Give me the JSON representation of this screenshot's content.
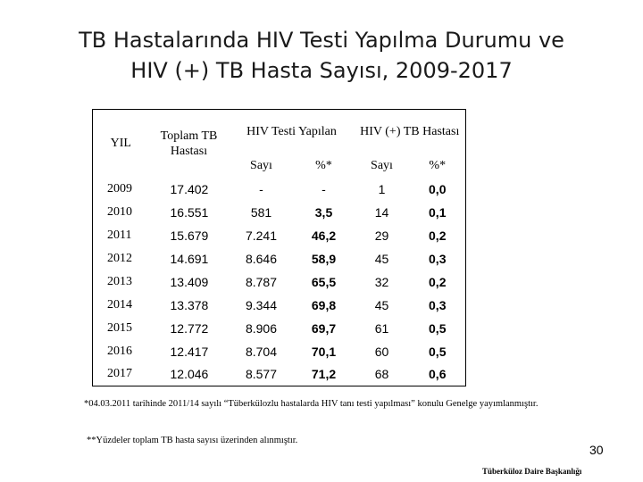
{
  "title": {
    "line1": "TB Hastalarında HIV Testi Yapılma Durumu ve",
    "line2": "HIV (+) TB Hasta Sayısı, 2009-2017"
  },
  "table": {
    "headers": {
      "year": "YIL",
      "total_line1": "Toplam TB",
      "total_line2": "Hastası",
      "hiv_test": "HIV Testi Yapılan",
      "hiv_positive": "HIV (+) TB Hastası",
      "count": "Sayı",
      "percent": "%*"
    },
    "rows": [
      {
        "year": "2009",
        "total": "17.402",
        "tested": "-",
        "tested_pct": "-",
        "positive": "1",
        "positive_pct": "0,0"
      },
      {
        "year": "2010",
        "total": "16.551",
        "tested": "581",
        "tested_pct": "3,5",
        "positive": "14",
        "positive_pct": "0,1"
      },
      {
        "year": "2011",
        "total": "15.679",
        "tested": "7.241",
        "tested_pct": "46,2",
        "positive": "29",
        "positive_pct": "0,2"
      },
      {
        "year": "2012",
        "total": "14.691",
        "tested": "8.646",
        "tested_pct": "58,9",
        "positive": "45",
        "positive_pct": "0,3"
      },
      {
        "year": "2013",
        "total": "13.409",
        "tested": "8.787",
        "tested_pct": "65,5",
        "positive": "32",
        "positive_pct": "0,2"
      },
      {
        "year": "2014",
        "total": "13.378",
        "tested": "9.344",
        "tested_pct": "69,8",
        "positive": "45",
        "positive_pct": "0,3"
      },
      {
        "year": "2015",
        "total": "12.772",
        "tested": "8.906",
        "tested_pct": "69,7",
        "positive": "61",
        "positive_pct": "0,5"
      },
      {
        "year": "2016",
        "total": "12.417",
        "tested": "8.704",
        "tested_pct": "70,1",
        "positive": "60",
        "positive_pct": "0,5"
      },
      {
        "year": "2017",
        "total": "12.046",
        "tested": "8.577",
        "tested_pct": "71,2",
        "positive": "68",
        "positive_pct": "0,6"
      }
    ]
  },
  "notes": {
    "note1": "*04.03.2011 tarihinde 2011/14 sayılı “Tüberkülozlu hastalarda HIV tanı testi yapılması” konulu Genelge yayımlanmıştır.",
    "note2": "**Yüzdeler toplam TB hasta sayısı üzerinden alınmıştır."
  },
  "page_number": "30",
  "footer": "Tüberküloz Daire Başkanlığı"
}
